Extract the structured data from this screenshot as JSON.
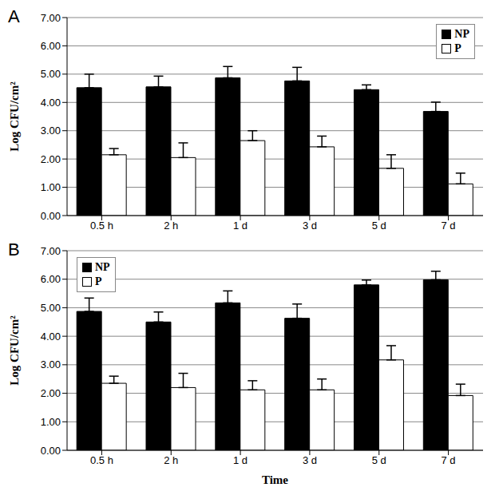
{
  "chart_data": [
    {
      "type": "bar",
      "title": "A",
      "y_label": "Log CFU/cm²",
      "categories": [
        "0.5 h",
        "2 h",
        "1 d",
        "3 d",
        "5 d",
        "7 d"
      ],
      "series": [
        {
          "name": "NP",
          "color": "#000000",
          "values": [
            4.52,
            4.55,
            4.87,
            4.76,
            4.45,
            3.68
          ],
          "errors": [
            0.48,
            0.38,
            0.4,
            0.48,
            0.17,
            0.33
          ]
        },
        {
          "name": "P",
          "color": "#ffffff",
          "values": [
            2.15,
            2.05,
            2.65,
            2.43,
            1.67,
            1.12
          ],
          "errors": [
            0.22,
            0.52,
            0.35,
            0.38,
            0.48,
            0.38
          ]
        }
      ],
      "ylim": [
        0,
        7
      ],
      "yticks": [
        {
          "value": 0,
          "label": "0.00"
        },
        {
          "value": 1,
          "label": "1.00"
        },
        {
          "value": 2,
          "label": "2.00"
        },
        {
          "value": 3,
          "label": "3.00"
        },
        {
          "value": 4,
          "label": "4.00"
        },
        {
          "value": 5,
          "label": "5.00"
        },
        {
          "value": 6,
          "label": "6.00"
        },
        {
          "value": 7,
          "label": "7.00"
        }
      ],
      "grid": true,
      "legend": "upper right"
    },
    {
      "type": "bar",
      "title": "B",
      "y_label": "Log CFU/cm²",
      "x_label": "Time",
      "categories": [
        "0.5 h",
        "2 h",
        "1 d",
        "3 d",
        "5 d",
        "7 d"
      ],
      "series": [
        {
          "name": "NP",
          "color": "#000000",
          "values": [
            4.87,
            4.5,
            5.17,
            4.63,
            5.8,
            5.98
          ],
          "errors": [
            0.47,
            0.35,
            0.42,
            0.5,
            0.17,
            0.3
          ]
        },
        {
          "name": "P",
          "color": "#ffffff",
          "values": [
            2.35,
            2.2,
            2.12,
            2.12,
            3.17,
            1.92
          ],
          "errors": [
            0.25,
            0.5,
            0.32,
            0.38,
            0.5,
            0.4
          ]
        }
      ],
      "ylim": [
        0,
        7
      ],
      "yticks": [
        {
          "value": 0,
          "label": "0.00"
        },
        {
          "value": 1,
          "label": "1.00"
        },
        {
          "value": 2,
          "label": "2.00"
        },
        {
          "value": 3,
          "label": "3.00"
        },
        {
          "value": 4,
          "label": "4.00"
        },
        {
          "value": 5,
          "label": "5.00"
        },
        {
          "value": 6,
          "label": "6.00"
        },
        {
          "value": 7,
          "label": "7.00"
        }
      ],
      "grid": true,
      "legend": "upper left"
    }
  ]
}
